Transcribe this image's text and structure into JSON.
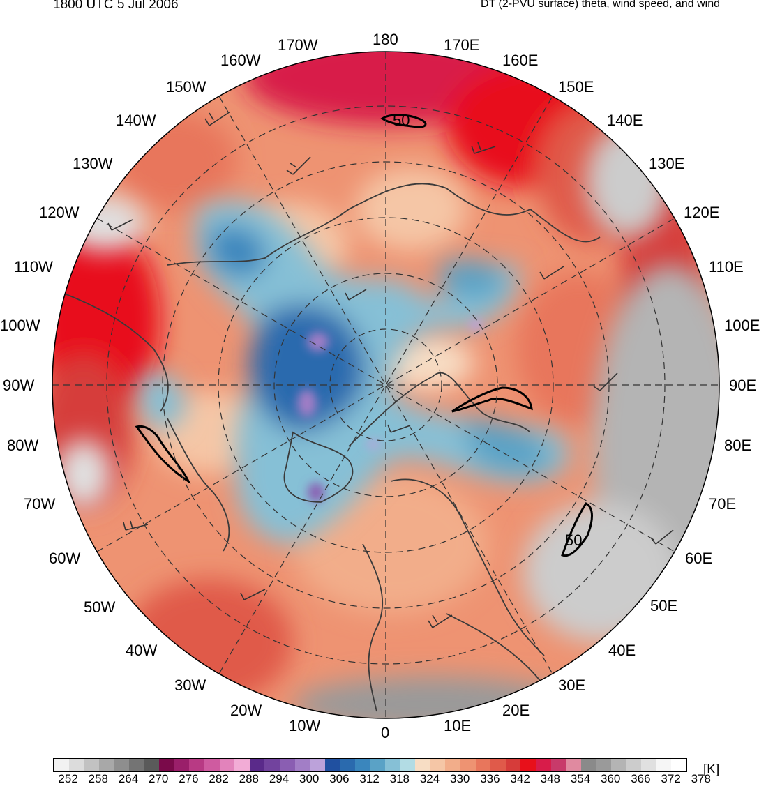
{
  "header": {
    "valid_time": "1800 UTC 5 Jul 2006",
    "product": "DT (2-PVU surface) theta, wind speed, and wind"
  },
  "map": {
    "projection": "north polar stereographic",
    "meridian_labels": [
      "180",
      "170E",
      "160E",
      "150E",
      "140E",
      "130E",
      "120E",
      "110E",
      "100E",
      "90E",
      "80E",
      "70E",
      "60E",
      "50E",
      "40E",
      "30E",
      "20E",
      "10E",
      "0",
      "10W",
      "20W",
      "30W",
      "40W",
      "50W",
      "60W",
      "70W",
      "80W",
      "90W",
      "100W",
      "110W",
      "120W",
      "130W",
      "140W",
      "150W",
      "160W",
      "170W"
    ],
    "contour_labels": [
      "50",
      "50"
    ],
    "contour_color": "#000000",
    "graticule_color": "#333333",
    "coastline_color": "#3a3a3a"
  },
  "colorbar": {
    "unit": "[K]",
    "tick_labels": [
      "252",
      "258",
      "264",
      "270",
      "276",
      "282",
      "288",
      "294",
      "300",
      "306",
      "312",
      "318",
      "324",
      "330",
      "336",
      "342",
      "348",
      "354",
      "360",
      "366",
      "372",
      "378"
    ],
    "colors": [
      "#f2f2f2",
      "#dcdcdc",
      "#c2c2c2",
      "#a8a8a8",
      "#8e8e8e",
      "#747474",
      "#5a5a5a",
      "#7a0a4a",
      "#9a1f6a",
      "#b83a84",
      "#cf5ba0",
      "#e283bb",
      "#f2acd6",
      "#5a2a8a",
      "#72439e",
      "#8a5eb2",
      "#a27ec6",
      "#bca2da",
      "#2050a0",
      "#2a6aae",
      "#3a86bd",
      "#5aa2c6",
      "#86c0d6",
      "#b2dce4",
      "#f7ddc4",
      "#f5c6a6",
      "#f2ad8a",
      "#ee9372",
      "#e8765c",
      "#e05a4a",
      "#d63c3a",
      "#e8101a",
      "#d81c4a",
      "#c83a6a",
      "#e08aa0",
      "#8a8a8a",
      "#9a9a9a",
      "#b4b4b4",
      "#cccccc",
      "#e0e0e0",
      "#f6f6f6",
      "#ffffff"
    ]
  }
}
